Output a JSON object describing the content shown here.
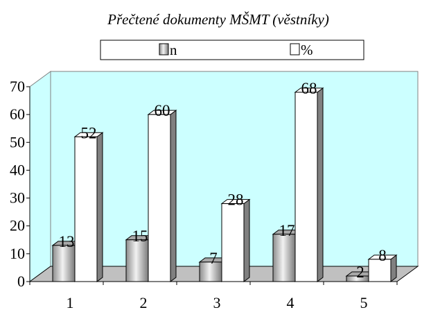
{
  "chart_data": {
    "type": "bar",
    "title": "Přečtené dokumenty MŠMT (věstníky)",
    "categories": [
      "1",
      "2",
      "3",
      "4",
      "5"
    ],
    "series": [
      {
        "name": "n",
        "values": [
          13,
          15,
          7,
          17,
          2
        ],
        "labels": [
          "13",
          "15",
          "7",
          "17",
          "2"
        ],
        "fill": "gray-gradient"
      },
      {
        "name": "%",
        "values": [
          52,
          60,
          28,
          68,
          8
        ],
        "labels": [
          "52",
          "60",
          "28",
          "68",
          "8"
        ],
        "fill": "#ffffff"
      }
    ],
    "yticks": [
      "0",
      "10",
      "20",
      "30",
      "40",
      "50",
      "60",
      "70"
    ],
    "ylim": [
      0,
      70
    ],
    "xlabel": "",
    "ylabel": "",
    "legend_position": "top-center",
    "grid": false,
    "colors": {
      "plot_wall": "#ccffff",
      "floor": "#c0c0c0",
      "bar_side": "#808080"
    }
  }
}
